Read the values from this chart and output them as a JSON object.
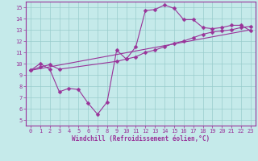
{
  "xlabel": "Windchill (Refroidissement éolien,°C)",
  "xlim": [
    -0.5,
    23.5
  ],
  "ylim": [
    4.5,
    15.5
  ],
  "xticks": [
    0,
    1,
    2,
    3,
    4,
    5,
    6,
    7,
    8,
    9,
    10,
    11,
    12,
    13,
    14,
    15,
    16,
    17,
    18,
    19,
    20,
    21,
    22,
    23
  ],
  "yticks": [
    5,
    6,
    7,
    8,
    9,
    10,
    11,
    12,
    13,
    14,
    15
  ],
  "bg_color": "#c5eaea",
  "line_color": "#993399",
  "grid_color": "#99cccc",
  "line1_x": [
    0,
    1,
    2,
    3,
    4,
    5,
    6,
    7,
    8,
    9,
    10,
    11,
    12,
    13,
    14,
    15,
    16,
    17,
    18,
    19,
    20,
    21,
    22,
    23
  ],
  "line1_y": [
    9.4,
    10.0,
    9.5,
    7.5,
    7.8,
    7.7,
    6.5,
    5.5,
    6.6,
    11.2,
    10.4,
    11.5,
    14.7,
    14.8,
    15.2,
    14.9,
    13.9,
    13.9,
    13.2,
    13.1,
    13.2,
    13.4,
    13.4,
    12.9
  ],
  "line2_x": [
    0,
    1,
    2,
    3,
    9,
    10,
    11,
    12,
    13,
    14,
    15,
    16,
    17,
    18,
    19,
    20,
    21,
    22,
    23
  ],
  "line2_y": [
    9.4,
    9.7,
    9.9,
    9.5,
    10.2,
    10.4,
    10.6,
    11.0,
    11.2,
    11.5,
    11.8,
    12.0,
    12.3,
    12.6,
    12.8,
    12.9,
    13.0,
    13.2,
    13.3
  ],
  "line3_x": [
    0,
    23
  ],
  "line3_y": [
    9.4,
    13.0
  ]
}
